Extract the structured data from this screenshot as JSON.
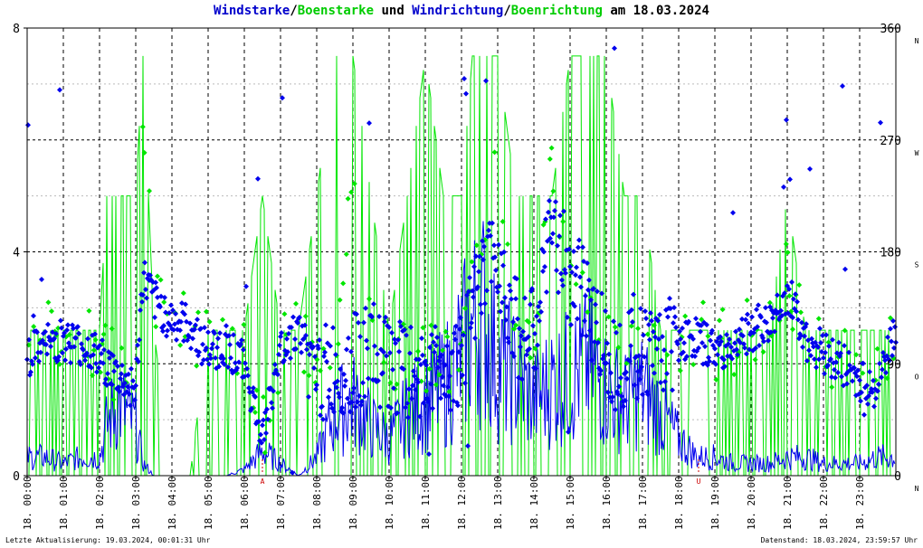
{
  "title": {
    "part1": "Windstarke",
    "sep1": "/",
    "part2": "Boenstarke",
    "part3": " und ",
    "part4": "Windrichtung",
    "sep2": "/",
    "part5": "Boenrichtung",
    "part6": " am 18.03.2024"
  },
  "colors": {
    "speed": "#0000ee",
    "gust": "#00e600",
    "grid": "#000000",
    "minorGrid": "#bbbbbb",
    "sunMark": "#cc0000"
  },
  "footer": {
    "left": "Letzte Aktualisierung: 19.03.2024, 00:01:31 Uhr",
    "right": "Datenstand: 18.03.2024, 23:59:57 Uhr"
  },
  "chart_data": {
    "type": "line",
    "x_unit": "hour",
    "xlim": [
      0,
      24
    ],
    "ylim_left": [
      0,
      8
    ],
    "ylim_right": [
      0,
      360
    ],
    "left_ticks": [
      "0",
      "4",
      "8"
    ],
    "right_ticks": [
      "0",
      "90",
      "180",
      "270",
      "360"
    ],
    "direction_labels": [
      "N",
      "O",
      "S",
      "W",
      "N"
    ],
    "x_tick_labels": [
      "18. 00:00",
      "18. 01:00",
      "18. 02:00",
      "18. 03:00",
      "18. 04:00",
      "18. 05:00",
      "18. 06:00",
      "18. 07:00",
      "18. 08:00",
      "18. 09:00",
      "18. 10:00",
      "18. 11:00",
      "18. 12:00",
      "18. 13:00",
      "18. 14:00",
      "18. 15:00",
      "18. 16:00",
      "18. 17:00",
      "18. 18:00",
      "18. 19:00",
      "18. 20:00",
      "18. 21:00",
      "18. 22:00",
      "18. 23:00"
    ],
    "sun_marks": [
      {
        "label": "A",
        "hour": 6.5
      },
      {
        "label": "U",
        "hour": 18.55
      }
    ],
    "series": [
      {
        "name": "Windstarke",
        "role": "speed",
        "hours": [
          0,
          0.5,
          1,
          1.5,
          2,
          2.2,
          2.5,
          3,
          3.2,
          3.5,
          4,
          4.5,
          5,
          5.5,
          6,
          6.5,
          7,
          7.5,
          8,
          8.5,
          9,
          9.5,
          10,
          10.5,
          11,
          11.5,
          12,
          12.3,
          12.6,
          13,
          13.5,
          14,
          14.5,
          15,
          15.5,
          16,
          16.5,
          17,
          17.5,
          18,
          18.5,
          19,
          19.5,
          20,
          20.5,
          21,
          21.5,
          22,
          22.5,
          23,
          23.5,
          24
        ],
        "values": [
          0.3,
          0.3,
          0.2,
          0.3,
          0.3,
          0.8,
          1.2,
          0.8,
          0.2,
          0,
          0,
          0,
          0,
          0,
          0.1,
          0.4,
          0.2,
          0,
          0.3,
          1.0,
          1.2,
          0.8,
          0.6,
          1.0,
          1.2,
          1.4,
          2.0,
          2.4,
          2.6,
          1.8,
          1.6,
          1.2,
          1.5,
          1.6,
          1.8,
          1.4,
          1.2,
          1.4,
          1.0,
          0.6,
          0.3,
          0.3,
          0.2,
          0.2,
          0.2,
          0.3,
          0.3,
          0.2,
          0.2,
          0.2,
          0.3,
          0.3
        ]
      },
      {
        "name": "Boenstarke",
        "role": "gust",
        "hours": [
          0,
          0.5,
          1,
          1.5,
          2,
          2.2,
          2.5,
          3,
          3.2,
          3.5,
          4,
          4.5,
          5,
          5.5,
          6,
          6.5,
          7,
          7.5,
          8,
          8.5,
          9,
          9.5,
          10,
          10.5,
          11,
          11.5,
          12,
          12.3,
          12.6,
          13,
          13.5,
          14,
          14.5,
          15,
          15.5,
          16,
          16.5,
          17,
          17.5,
          18,
          18.5,
          19,
          19.5,
          20,
          20.5,
          21,
          21.5,
          22,
          22.5,
          23,
          23.5,
          24
        ],
        "values": [
          2.6,
          2.6,
          2.6,
          2.6,
          2.6,
          5.0,
          5.0,
          5.0,
          7.5,
          2.6,
          0,
          0,
          2.6,
          2.6,
          2.6,
          5.0,
          2.6,
          2.6,
          5.0,
          7.5,
          7.5,
          5.0,
          2.6,
          5.0,
          7.5,
          5.0,
          5.0,
          7.5,
          7.5,
          7.5,
          5.0,
          5.0,
          5.0,
          7.5,
          7.5,
          7.5,
          5.0,
          5.0,
          2.6,
          2.6,
          2.6,
          2.6,
          2.6,
          2.6,
          2.6,
          5.0,
          2.6,
          2.6,
          2.6,
          2.6,
          2.6,
          2.6
        ]
      },
      {
        "name": "Windrichtung",
        "role": "direction",
        "hours": [
          0,
          0.5,
          1,
          1.5,
          2,
          2.5,
          3,
          3.2,
          3.5,
          4,
          4.5,
          5,
          5.5,
          6,
          6.5,
          7,
          7.5,
          8,
          8.5,
          9,
          9.5,
          10,
          10.5,
          11,
          11.5,
          12,
          12.5,
          13,
          13.5,
          14,
          14.5,
          15,
          15.5,
          16,
          16.5,
          17,
          17.5,
          18,
          18.5,
          19,
          19.5,
          20,
          20.5,
          21,
          21.5,
          22,
          22.5,
          23,
          23.5,
          24
        ],
        "values": [
          95,
          105,
          110,
          105,
          95,
          80,
          70,
          160,
          140,
          125,
          120,
          100,
          105,
          90,
          30,
          100,
          120,
          80,
          85,
          90,
          100,
          90,
          80,
          85,
          90,
          95,
          150,
          180,
          120,
          110,
          200,
          160,
          140,
          100,
          95,
          100,
          105,
          110,
          110,
          100,
          105,
          115,
          120,
          150,
          110,
          100,
          90,
          75,
          70,
          120
        ]
      },
      {
        "name": "Boenrichtung",
        "role": "gustdirection",
        "hours": [
          0,
          0.5,
          1,
          1.5,
          2,
          2.5,
          3,
          3.2,
          3.5,
          4,
          4.5,
          5,
          5.5,
          6,
          6.5,
          7,
          7.5,
          8,
          8.5,
          9,
          9.5,
          10,
          10.5,
          11,
          11.5,
          12,
          12.5,
          13,
          13.5,
          14,
          14.5,
          15,
          15.5,
          16,
          16.5,
          17,
          17.5,
          18,
          18.5,
          19,
          19.5,
          20,
          20.5,
          21,
          21.5,
          22,
          22.5,
          23,
          23.5,
          24
        ],
        "values": [
          100,
          110,
          110,
          105,
          100,
          85,
          75,
          300,
          150,
          125,
          120,
          100,
          105,
          95,
          40,
          100,
          120,
          90,
          95,
          270,
          110,
          100,
          90,
          90,
          95,
          100,
          200,
          240,
          130,
          120,
          240,
          170,
          150,
          110,
          100,
          105,
          105,
          110,
          115,
          105,
          110,
          115,
          120,
          160,
          115,
          100,
          95,
          80,
          75,
          120
        ]
      }
    ]
  }
}
